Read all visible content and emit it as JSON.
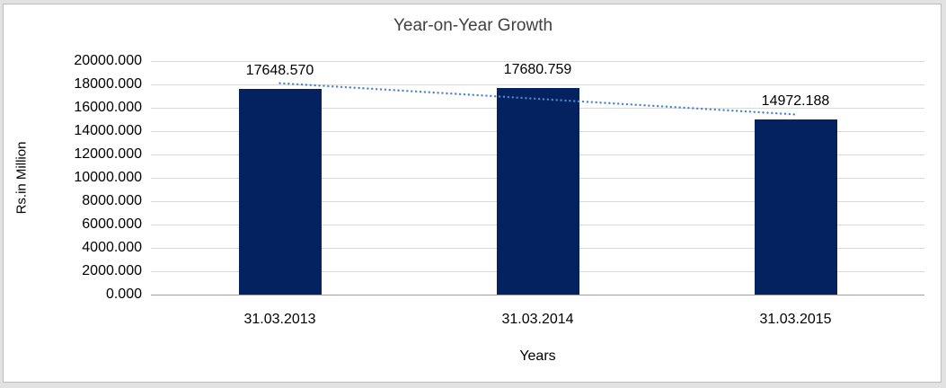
{
  "chart_data": {
    "type": "bar",
    "title": "Year-on-Year Growth",
    "xlabel": "Years",
    "ylabel": "Rs.in Million",
    "categories": [
      "31.03.2013",
      "31.03.2014",
      "31.03.2015"
    ],
    "values": [
      17648.57,
      17680.759,
      14972.188
    ],
    "data_labels": [
      "17648.570",
      "17680.759",
      "14972.188"
    ],
    "ylim": [
      0,
      20000
    ],
    "ytick_labels": [
      "0.000",
      "2000.000",
      "4000.000",
      "6000.000",
      "8000.000",
      "10000.000",
      "12000.000",
      "14000.000",
      "16000.000",
      "18000.000",
      "20000.000"
    ],
    "grid": true,
    "legend": "none",
    "bar_color": "#03225F",
    "trendline": {
      "type": "linear",
      "style": "dotted",
      "color": "#4E86C8"
    },
    "gridline_color": "#D9D9D9",
    "axis_line_color": "#9E9E9E",
    "title_color": "#404040",
    "text_color": "#000000",
    "plot_background": "#FFFFFF",
    "frame_border_color": "#BDBDBD"
  }
}
